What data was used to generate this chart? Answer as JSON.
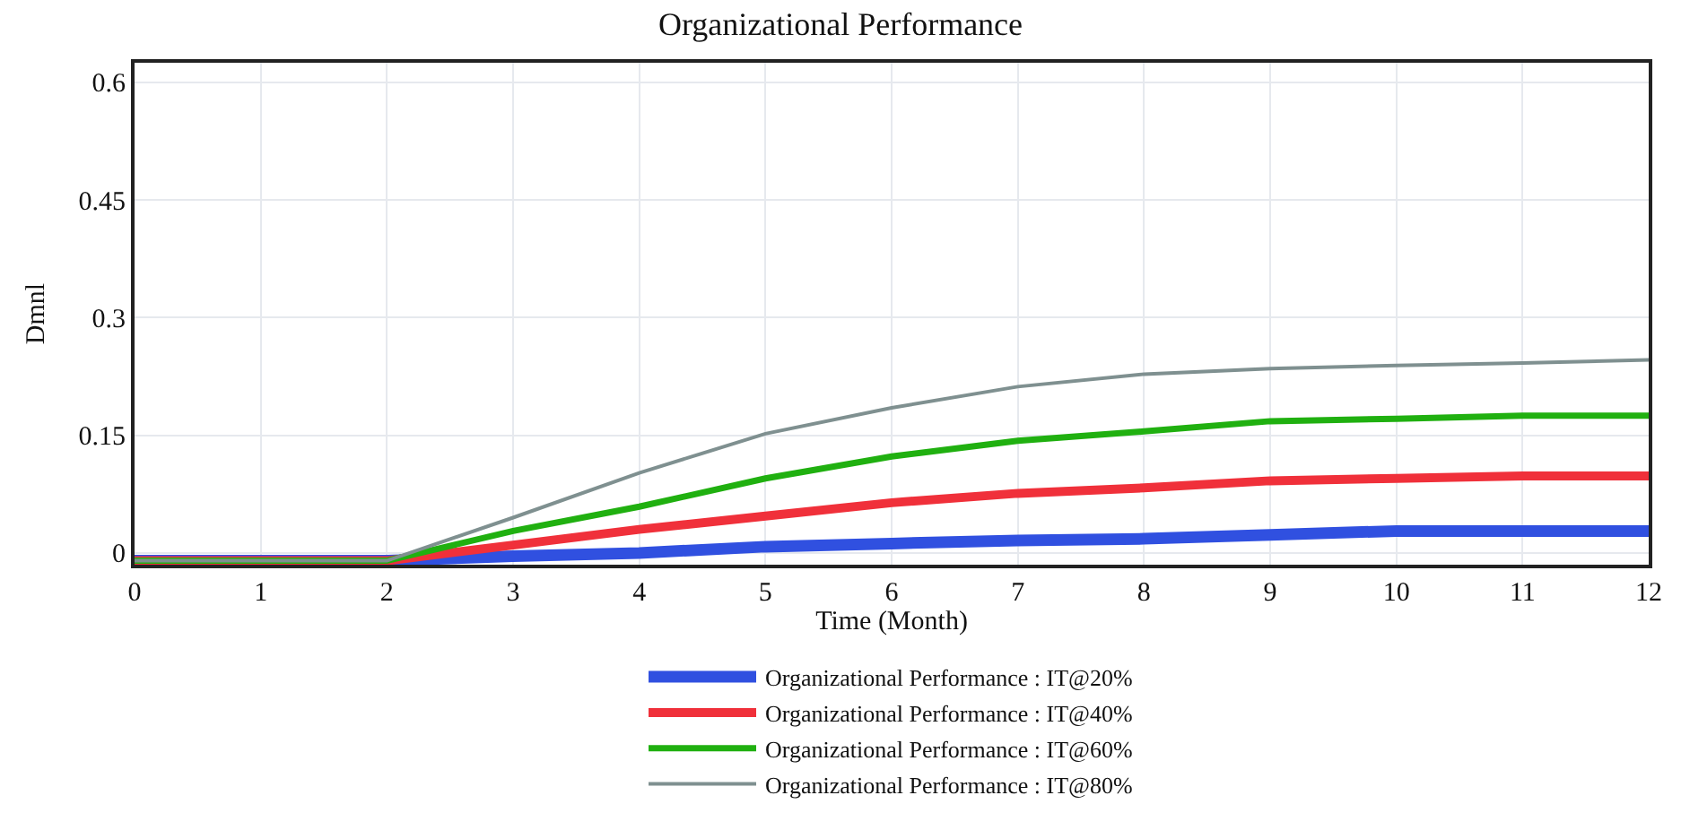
{
  "chart_data": {
    "type": "line",
    "title": "Organizational Performance",
    "xlabel": "Time (Month)",
    "ylabel": "Dmnl",
    "x": [
      0,
      1,
      2,
      3,
      4,
      5,
      6,
      7,
      8,
      9,
      10,
      11,
      12
    ],
    "series": [
      {
        "name": "Organizational Performance : IT@20%",
        "color": "#3050e0",
        "values": [
          -0.01,
          -0.01,
          -0.01,
          -0.004,
          0,
          0.008,
          0.012,
          0.016,
          0.018,
          0.023,
          0.028,
          0.028,
          0.028
        ]
      },
      {
        "name": "Organizational Performance : IT@40%",
        "color": "#f0303a",
        "values": [
          -0.01,
          -0.01,
          -0.01,
          0.01,
          0.03,
          0.047,
          0.064,
          0.076,
          0.083,
          0.092,
          0.095,
          0.098,
          0.098
        ]
      },
      {
        "name": "Organizational Performance : IT@60%",
        "color": "#20b010",
        "values": [
          -0.01,
          -0.01,
          -0.01,
          0.028,
          0.059,
          0.095,
          0.123,
          0.143,
          0.155,
          0.168,
          0.171,
          0.175,
          0.175
        ]
      },
      {
        "name": "Organizational Performance : IT@80%",
        "color": "#7f9090",
        "values": [
          -0.01,
          -0.01,
          -0.01,
          0.045,
          0.102,
          0.152,
          0.185,
          0.212,
          0.228,
          0.235,
          0.239,
          0.242,
          0.246
        ]
      }
    ],
    "xlim": [
      0,
      12
    ],
    "xticks": [
      0,
      1,
      2,
      3,
      4,
      5,
      6,
      7,
      8,
      9,
      10,
      11,
      12
    ],
    "ylim": [
      -0.015,
      0.625
    ],
    "yticks": [
      0,
      0.15,
      0.3,
      0.45,
      0.6
    ],
    "grid": true,
    "legend": "bottom",
    "marker": "none",
    "line_style": "solid"
  }
}
